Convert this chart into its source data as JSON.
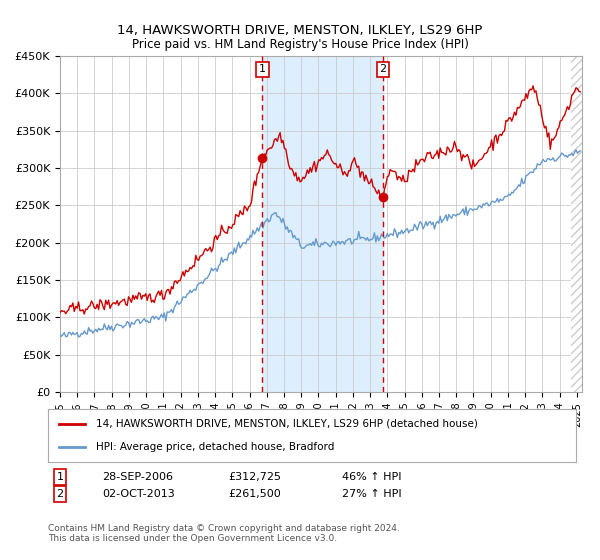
{
  "title": "14, HAWKSWORTH DRIVE, MENSTON, ILKLEY, LS29 6HP",
  "subtitle": "Price paid vs. HM Land Registry's House Price Index (HPI)",
  "ylim": [
    0,
    450000
  ],
  "yticks": [
    0,
    50000,
    100000,
    150000,
    200000,
    250000,
    300000,
    350000,
    400000,
    450000
  ],
  "ytick_labels": [
    "£0",
    "£50K",
    "£100K",
    "£150K",
    "£200K",
    "£250K",
    "£300K",
    "£350K",
    "£400K",
    "£450K"
  ],
  "xlim_start": 1995.0,
  "xlim_end": 2025.3,
  "xtick_years": [
    1995,
    1996,
    1997,
    1998,
    1999,
    2000,
    2001,
    2002,
    2003,
    2004,
    2005,
    2006,
    2007,
    2008,
    2009,
    2010,
    2011,
    2012,
    2013,
    2014,
    2015,
    2016,
    2017,
    2018,
    2019,
    2020,
    2021,
    2022,
    2023,
    2024,
    2025
  ],
  "sale1_x": 2006.74,
  "sale1_y": 312725,
  "sale2_x": 2013.75,
  "sale2_y": 261500,
  "sale1_date": "28-SEP-2006",
  "sale1_price": "£312,725",
  "sale1_hpi": "46% ↑ HPI",
  "sale2_date": "02-OCT-2013",
  "sale2_price": "£261,500",
  "sale2_hpi": "27% ↑ HPI",
  "legend_red": "14, HAWKSWORTH DRIVE, MENSTON, ILKLEY, LS29 6HP (detached house)",
  "legend_blue": "HPI: Average price, detached house, Bradford",
  "footer": "Contains HM Land Registry data © Crown copyright and database right 2024.\nThis data is licensed under the Open Government Licence v3.0.",
  "red_color": "#cc0000",
  "blue_color": "#6699cc",
  "shade_color": "#ddeeff",
  "grid_color": "#cccccc",
  "hatch_color": "#cccccc",
  "bg_color": "#ffffff"
}
